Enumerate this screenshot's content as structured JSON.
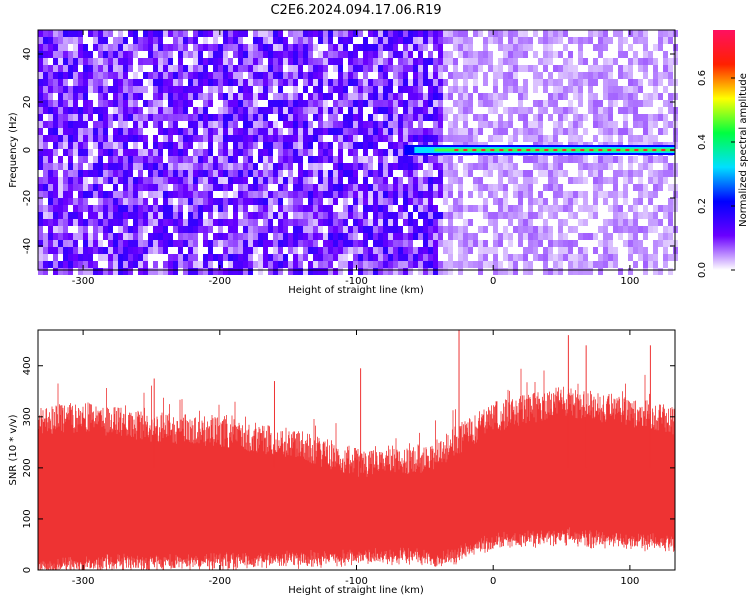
{
  "title": "C2E6.2024.094.17.06.R19",
  "chart_data": [
    {
      "type": "heatmap",
      "xlabel": "Height of straight line (km)",
      "ylabel": "Frequency (Hz)",
      "xlim": [
        -333,
        133
      ],
      "ylim": [
        -50,
        50
      ],
      "xticks": [
        -300,
        -200,
        -100,
        0,
        100
      ],
      "yticks": [
        -40,
        -20,
        0,
        20,
        40
      ],
      "colorbar": {
        "label": "Normalized spectral amplitude",
        "range": [
          0.0,
          0.75
        ],
        "ticks": [
          0.0,
          0.2,
          0.4,
          0.6
        ],
        "colormap": [
          "#ffffff",
          "#6a00ff",
          "#0000ff",
          "#00e0ff",
          "#00ff40",
          "#ffff00",
          "#ff2000",
          "#ff1060"
        ]
      },
      "noise_regions": [
        {
          "x_range": [
            -333,
            -40
          ],
          "mean_amplitude": 0.1
        },
        {
          "x_range": [
            -40,
            133
          ],
          "mean_amplitude": 0.04
        }
      ],
      "signal_line": {
        "frequency_hz": 0,
        "x_start": -65,
        "x_end": 133,
        "peak_amplitude": 0.7
      }
    },
    {
      "type": "line",
      "xlabel": "Height of straight line (km)",
      "ylabel": "SNR (10 * v/v)",
      "xlim": [
        -333,
        133
      ],
      "ylim": [
        0,
        470
      ],
      "xticks": [
        -300,
        -200,
        -100,
        0,
        100
      ],
      "yticks": [
        0,
        100,
        200,
        300,
        400
      ],
      "series": [
        {
          "color": "#ee3333",
          "x": [
            -333,
            -300,
            -250,
            -200,
            -150,
            -100,
            -50,
            -40,
            0,
            50,
            100,
            133
          ],
          "upper_envelope": [
            320,
            330,
            310,
            300,
            280,
            240,
            250,
            260,
            330,
            360,
            340,
            320
          ],
          "lower_envelope": [
            10,
            15,
            20,
            20,
            25,
            30,
            30,
            20,
            60,
            70,
            60,
            55
          ],
          "peaks": [
            {
              "x": -248,
              "y": 375
            },
            {
              "x": -160,
              "y": 370
            },
            {
              "x": -97,
              "y": 395
            },
            {
              "x": -25,
              "y": 470
            },
            {
              "x": 55,
              "y": 460
            },
            {
              "x": 68,
              "y": 440
            },
            {
              "x": 115,
              "y": 440
            }
          ]
        }
      ]
    }
  ]
}
